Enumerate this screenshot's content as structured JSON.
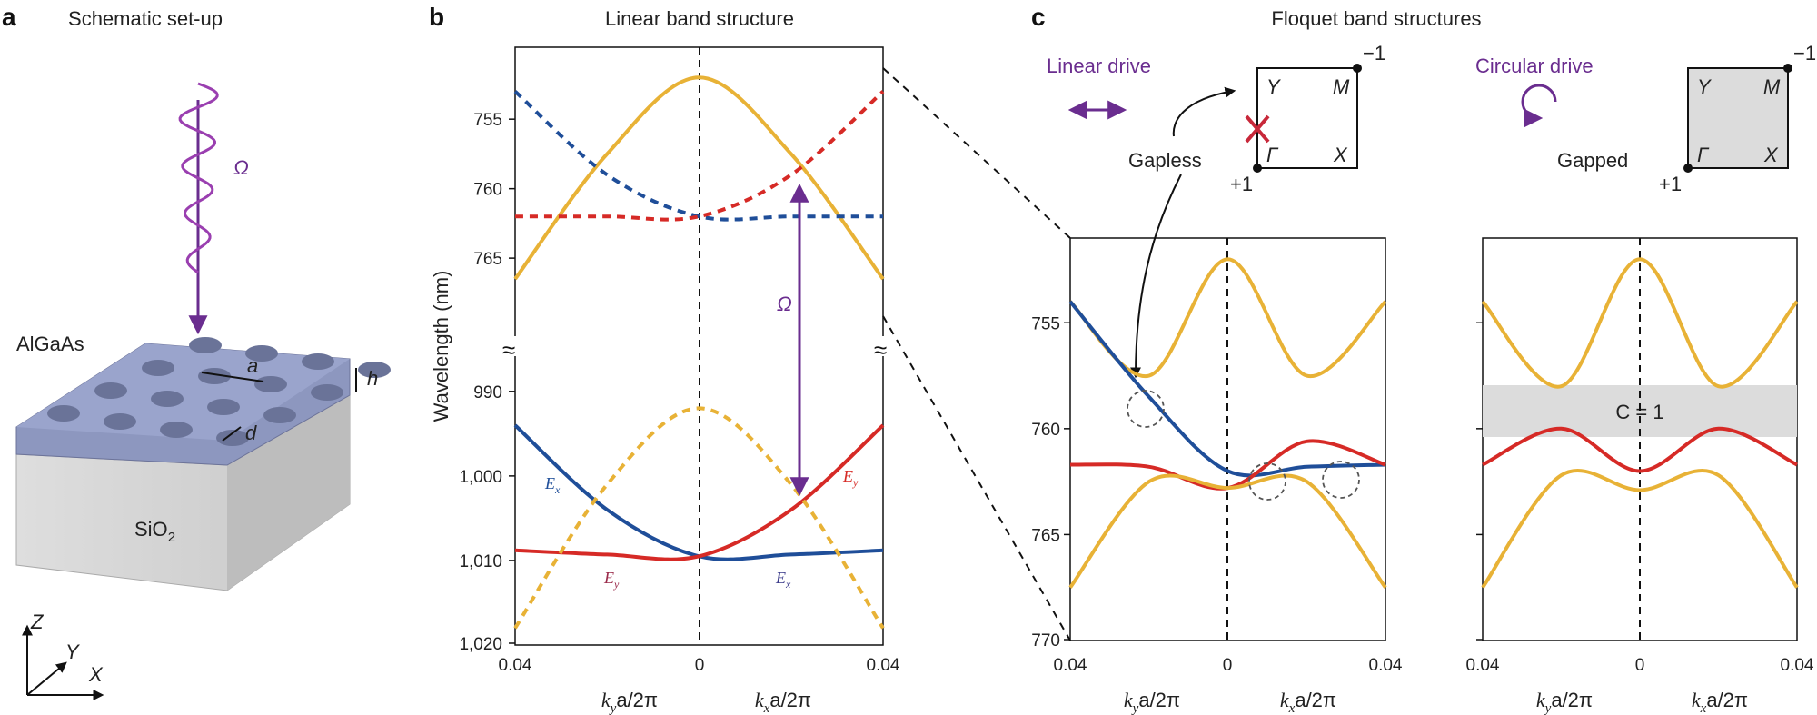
{
  "panels": {
    "a": {
      "letter": "a",
      "title": "Schematic set-up",
      "omega": "Ω",
      "material_top": "AlGaAs",
      "material_bottom": "SiO",
      "material_bottom_sub": "2",
      "dim_a": "a",
      "dim_d": "d",
      "dim_h": "h",
      "axes": {
        "z": "Z",
        "y": "Y",
        "x": "X"
      }
    },
    "b": {
      "letter": "b",
      "title": "Linear band structure",
      "ylabel": "Wavelength (nm)",
      "yticks_top": [
        "755",
        "760",
        "765"
      ],
      "yticks_bottom": [
        "990",
        "1,000",
        "1,010",
        "1,020"
      ],
      "xticks": [
        "0.04",
        "0",
        "0.04"
      ],
      "xlabel_left": {
        "k": "k",
        "sub": "y",
        "rest": "a/2π"
      },
      "xlabel_right": {
        "k": "k",
        "sub": "x",
        "rest": "a/2π"
      },
      "omega": "Ω",
      "labels": {
        "ex_left": {
          "main": "E",
          "sub": "x"
        },
        "ey_right": {
          "main": "E",
          "sub": "y"
        },
        "ey_bottom": {
          "main": "E",
          "sub": "y"
        },
        "ex_bottom": {
          "main": "E",
          "sub": "x"
        }
      }
    },
    "c": {
      "letter": "c",
      "title": "Floquet band structures",
      "linear": {
        "label": "Linear drive",
        "state": "Gapless",
        "bz": {
          "Y": "Y",
          "M": "M",
          "G": "Γ",
          "X": "X",
          "top": "−1",
          "bottom": "+1"
        }
      },
      "circular": {
        "label": "Circular drive",
        "state": "Gapped",
        "bz": {
          "Y": "Y",
          "M": "M",
          "G": "Γ",
          "X": "X",
          "top": "−1",
          "bottom": "+1"
        },
        "chern": "C = 1"
      },
      "yticks": [
        "755",
        "760",
        "765",
        "770"
      ],
      "xticks": [
        "0.04",
        "0",
        "0.04"
      ],
      "xlabel_left": {
        "k": "k",
        "sub": "y",
        "rest": "a/2π"
      },
      "xlabel_right": {
        "k": "k",
        "sub": "x",
        "rest": "a/2π"
      }
    }
  },
  "colors": {
    "yellow": "#e8b236",
    "red": "#d62a26",
    "blue": "#1f4e99",
    "purple": "#6a2d8f",
    "gap": "#dcdcdc",
    "cross": "#c8283a"
  },
  "chart_data": [
    {
      "type": "line",
      "panel": "b-top",
      "x": [
        -0.04,
        -0.02,
        0,
        0.02,
        0.04
      ],
      "ylim": [
        751,
        768
      ],
      "series": [
        {
          "color": "yellow",
          "style": "solid",
          "values": [
            766.5,
            757.5,
            752,
            757.5,
            766.5
          ]
        },
        {
          "color": "blue",
          "style": "dashed",
          "values": [
            753,
            759,
            762,
            762,
            762
          ]
        },
        {
          "color": "red",
          "style": "dashed",
          "values": [
            762,
            762,
            762,
            759,
            753
          ]
        }
      ]
    },
    {
      "type": "line",
      "panel": "b-bottom",
      "x": [
        -0.04,
        -0.02,
        0,
        0.02,
        0.04
      ],
      "ylim": [
        984,
        1020
      ],
      "series": [
        {
          "color": "blue",
          "style": "solid",
          "values": [
            994,
            1004,
            1009.5,
            1009.3,
            1008.8
          ]
        },
        {
          "color": "red",
          "style": "solid",
          "values": [
            1008.8,
            1009.3,
            1009.5,
            1004,
            994
          ]
        },
        {
          "color": "yellow",
          "style": "dashed",
          "values": [
            1018,
            1001,
            992,
            1001,
            1018
          ]
        }
      ]
    },
    {
      "type": "line",
      "panel": "c-linear",
      "x": [
        -0.04,
        -0.02,
        0,
        0.02,
        0.04
      ],
      "ylim": [
        751,
        770
      ],
      "series": [
        {
          "name": "upper",
          "values": [
            754,
            757.5,
            752,
            757.5,
            754
          ]
        },
        {
          "name": "crossing-blue",
          "values": [
            754,
            758.5,
            762,
            761.8,
            761.7
          ]
        },
        {
          "name": "middle",
          "values": [
            761.7,
            761.8,
            762.8,
            760.6,
            761.7
          ]
        },
        {
          "name": "lower",
          "values": [
            767.5,
            762.5,
            762.8,
            762.5,
            767.5
          ]
        }
      ]
    },
    {
      "type": "line",
      "panel": "c-circular",
      "x": [
        -0.04,
        -0.02,
        0,
        0.02,
        0.04
      ],
      "ylim": [
        751,
        770
      ],
      "series": [
        {
          "name": "upper",
          "values": [
            754,
            758,
            752,
            758,
            754
          ]
        },
        {
          "name": "middle",
          "values": [
            761.7,
            760,
            762,
            760,
            761.7
          ]
        },
        {
          "name": "lower",
          "values": [
            767.5,
            762.2,
            762.9,
            762.2,
            767.5
          ]
        }
      ],
      "gap": [
        757.9,
        759.9
      ]
    }
  ]
}
